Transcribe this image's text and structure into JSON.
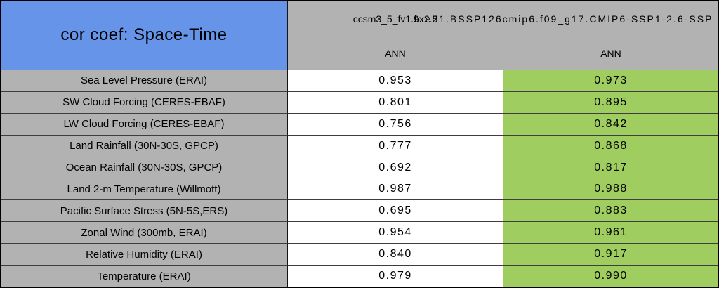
{
  "table": {
    "title": "cor coef: Space-Time",
    "columns": [
      {
        "model": "ccsm3_5_fv1.9x2.5",
        "season": "ANN"
      },
      {
        "model": "b.e21.BSSP126cmip6.f09_g17.CMIP6-SSP1-2.6-SSP",
        "season": "ANN"
      }
    ],
    "rows": [
      {
        "label": "Sea Level Pressure (ERAI)",
        "values": [
          "0.953",
          "0.973"
        ]
      },
      {
        "label": "SW Cloud Forcing (CERES-EBAF)",
        "values": [
          "0.801",
          "0.895"
        ]
      },
      {
        "label": "LW Cloud Forcing (CERES-EBAF)",
        "values": [
          "0.756",
          "0.842"
        ]
      },
      {
        "label": "Land Rainfall (30N-30S, GPCP)",
        "values": [
          "0.777",
          "0.868"
        ]
      },
      {
        "label": "Ocean Rainfall (30N-30S, GPCP)",
        "values": [
          "0.692",
          "0.817"
        ]
      },
      {
        "label": "Land 2-m Temperature (Willmott)",
        "values": [
          "0.987",
          "0.988"
        ]
      },
      {
        "label": "Pacific Surface Stress (5N-5S,ERS)",
        "values": [
          "0.695",
          "0.883"
        ]
      },
      {
        "label": "Zonal Wind (300mb, ERAI)",
        "values": [
          "0.954",
          "0.961"
        ]
      },
      {
        "label": "Relative Humidity (ERAI)",
        "values": [
          "0.840",
          "0.917"
        ]
      },
      {
        "label": "Temperature (ERAI)",
        "values": [
          "0.979",
          "0.990"
        ]
      }
    ]
  },
  "chart_data": {
    "type": "table",
    "title": "cor coef: Space-Time",
    "categories": [
      "Sea Level Pressure (ERAI)",
      "SW Cloud Forcing (CERES-EBAF)",
      "LW Cloud Forcing (CERES-EBAF)",
      "Land Rainfall (30N-30S, GPCP)",
      "Ocean Rainfall (30N-30S, GPCP)",
      "Land 2-m Temperature (Willmott)",
      "Pacific Surface Stress (5N-5S,ERS)",
      "Zonal Wind (300mb, ERAI)",
      "Relative Humidity (ERAI)",
      "Temperature (ERAI)"
    ],
    "series": [
      {
        "name": "ccsm3_5_fv1.9x2.5",
        "season": "ANN",
        "values": [
          0.953,
          0.801,
          0.756,
          0.777,
          0.692,
          0.987,
          0.695,
          0.954,
          0.84,
          0.979
        ]
      },
      {
        "name": "b.e21.BSSP126cmip6.f09_g17.CMIP6-SSP1-2.6-SSP",
        "season": "ANN",
        "values": [
          0.973,
          0.895,
          0.842,
          0.868,
          0.817,
          0.988,
          0.883,
          0.961,
          0.917,
          0.99
        ]
      }
    ],
    "layout": {
      "title_cell_bg": "#6594e8",
      "header_bg": "#b2b2b2",
      "row_label_bg": "#b2b2b2",
      "series1_cell_bg": "#ffffff",
      "series2_cell_bg": "#a0cd5f",
      "grid": "on"
    }
  },
  "colors": {
    "title_blue": "#6594e8",
    "header_gray": "#b2b2b2",
    "value_green": "#a0cd5f",
    "value_white": "#ffffff",
    "border_dark": "#141414"
  }
}
